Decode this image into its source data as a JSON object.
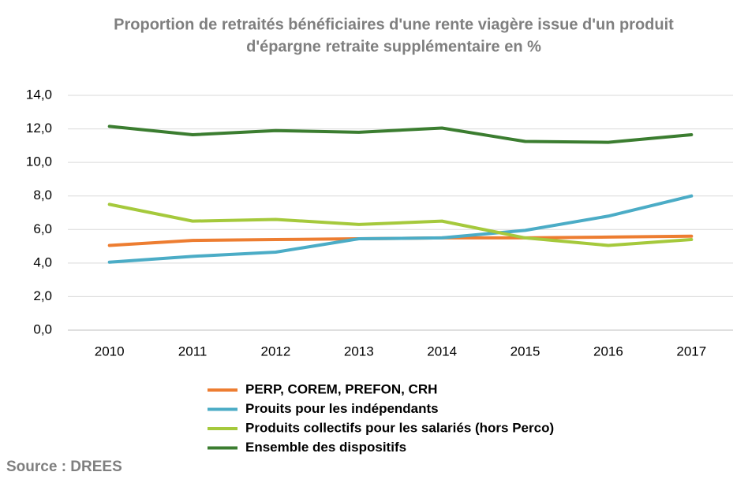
{
  "chart_data": {
    "type": "line",
    "title": [
      "Proportion de retraités bénéficiaires d'une rente viagère issue d'un produit",
      "d'épargne retraite supplémentaire en %"
    ],
    "categories": [
      "2010",
      "2011",
      "2012",
      "2013",
      "2014",
      "2015",
      "2016",
      "2017"
    ],
    "series": [
      {
        "name": "PERP, COREM, PREFON, CRH",
        "color": "#ed7d31",
        "values": [
          5.05,
          5.35,
          5.4,
          5.45,
          5.5,
          5.5,
          5.55,
          5.6
        ]
      },
      {
        "name": "Prouits pour les indépendants",
        "color": "#4bacc6",
        "values": [
          4.05,
          4.4,
          4.65,
          5.45,
          5.5,
          5.95,
          6.8,
          8.0
        ]
      },
      {
        "name": "Produits collectifs pour les salariés (hors Perco)",
        "color": "#a5c93c",
        "values": [
          7.5,
          6.5,
          6.6,
          6.3,
          6.5,
          5.5,
          5.05,
          5.4
        ]
      },
      {
        "name": "Ensemble des dispositifs",
        "color": "#3b7d30",
        "values": [
          12.15,
          11.65,
          11.9,
          11.8,
          12.05,
          11.25,
          11.2,
          11.65
        ]
      }
    ],
    "ylim": [
      0,
      14
    ],
    "yticks": [
      {
        "value": 0,
        "label": "0,0"
      },
      {
        "value": 2,
        "label": "2,0"
      },
      {
        "value": 4,
        "label": "4,0"
      },
      {
        "value": 6,
        "label": "6,0"
      },
      {
        "value": 8,
        "label": "8,0"
      },
      {
        "value": 10,
        "label": "10,0"
      },
      {
        "value": 12,
        "label": "12,0"
      },
      {
        "value": 14,
        "label": "14,0"
      }
    ],
    "grid": true,
    "legend": "bottom",
    "source": "Source : DREES"
  }
}
